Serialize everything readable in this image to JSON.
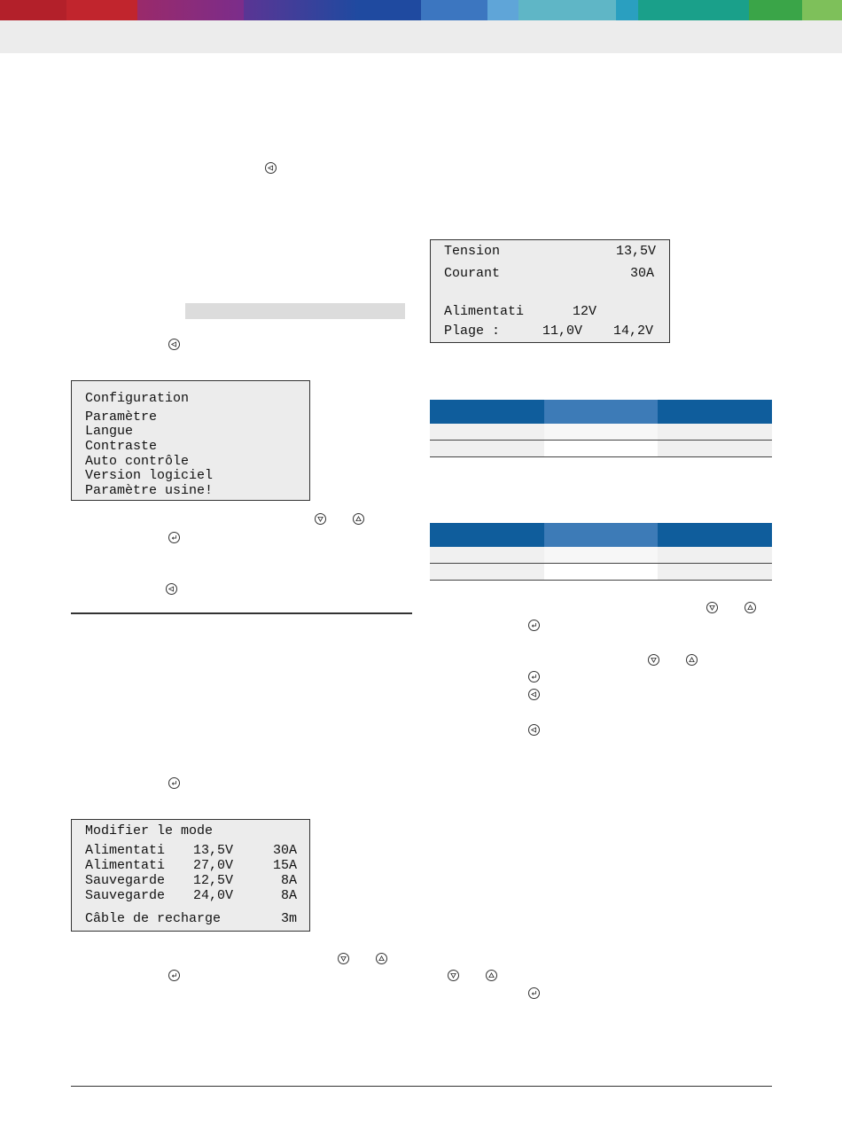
{
  "colors": {
    "brand_strip": [
      "#b3202a",
      "#c1252d",
      "#7b2d8b",
      "#4a3a97",
      "#1f4aa0",
      "#3c76c0",
      "#5fa5d8",
      "#5fb6c6",
      "#1aa08a",
      "#3aa548",
      "#7ec05a"
    ],
    "table_header_dark": "#0f5d9c",
    "table_header_mid": "#3d7bb7"
  },
  "icons": {
    "back": "back-key-icon",
    "down": "down-key-icon",
    "up": "up-key-icon",
    "enter": "enter-key-icon"
  },
  "screen_status": {
    "tension_label": "Tension",
    "tension_value": "13,5V",
    "courant_label": "Courant",
    "courant_value": "30A",
    "mode_label": "Alimentati",
    "mode_value": "12V",
    "plage_label": "Plage :",
    "plage_min": "11,0V",
    "plage_max": "14,2V"
  },
  "screen_config": {
    "title": "Configuration",
    "items": [
      "Paramètre",
      "Langue",
      "Contraste",
      "Auto contrôle",
      "Version logiciel",
      "Paramètre usine!"
    ]
  },
  "screen_mode": {
    "title": "Modifier le mode",
    "rows": [
      {
        "name": "Alimentati",
        "voltage": "13,5V",
        "current": "30A"
      },
      {
        "name": "Alimentati",
        "voltage": "27,0V",
        "current": "15A"
      },
      {
        "name": "Sauvegarde",
        "voltage": "12,5V",
        "current": "8A"
      },
      {
        "name": "Sauvegarde",
        "voltage": "24,0V",
        "current": "8A"
      }
    ],
    "cable_label": "Câble de recharge",
    "cable_value": "3m"
  }
}
